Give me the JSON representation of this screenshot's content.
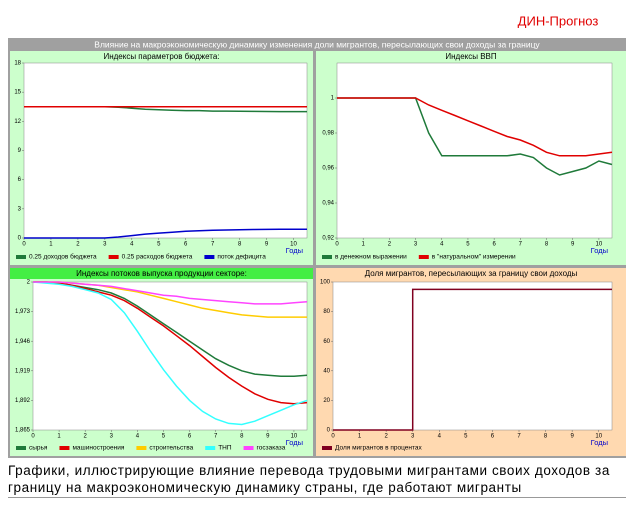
{
  "header": "ДИН-Прогноз",
  "title": "Влияние на макроэкономическую динамику изменения доли мигрантов, пересылающих свои доходы за границу",
  "caption": "Графики, иллюстрирующие влияние перевода трудовыми мигрантами своих доходов за границу на макроэкономическую динамику страны, где работают мигранты",
  "chart_data": [
    {
      "type": "line",
      "title": "Индексы параметров бюджета:",
      "xlabel": "Годы",
      "x": [
        0,
        0.5,
        1,
        1.5,
        2,
        2.5,
        3,
        3.5,
        4,
        4.5,
        5,
        5.5,
        6,
        6.5,
        7,
        7.5,
        8,
        8.5,
        9,
        9.5,
        10,
        10.5
      ],
      "xlim": [
        0,
        10.5
      ],
      "xticks": [
        0,
        1,
        2,
        3,
        4,
        5,
        6,
        7,
        8,
        9,
        10
      ],
      "ylim": [
        0,
        18
      ],
      "yticks": [
        0,
        3,
        6,
        9,
        12,
        15,
        18
      ],
      "grid": false,
      "series": [
        {
          "name": "0.25 доходов бюджета",
          "color": "#1f7a3a",
          "values": [
            13.5,
            13.5,
            13.5,
            13.5,
            13.5,
            13.5,
            13.5,
            13.45,
            13.35,
            13.25,
            13.2,
            13.15,
            13.1,
            13.1,
            13.05,
            13.05,
            13.03,
            13.02,
            13.01,
            13.0,
            13.0,
            13.0
          ]
        },
        {
          "name": "0.25 расходов бюджета",
          "color": "#e00000",
          "values": [
            13.5,
            13.5,
            13.5,
            13.5,
            13.5,
            13.5,
            13.5,
            13.5,
            13.5,
            13.5,
            13.5,
            13.5,
            13.5,
            13.5,
            13.5,
            13.5,
            13.5,
            13.5,
            13.5,
            13.5,
            13.5,
            13.5
          ]
        },
        {
          "name": "поток дефицита",
          "color": "#0000cc",
          "values": [
            0,
            0,
            0,
            0,
            0,
            0,
            0,
            0.1,
            0.25,
            0.4,
            0.5,
            0.6,
            0.7,
            0.75,
            0.8,
            0.82,
            0.85,
            0.87,
            0.88,
            0.89,
            0.9,
            0.9
          ]
        }
      ]
    },
    {
      "type": "line",
      "title": "Индексы ВВП",
      "xlabel": "Годы",
      "x": [
        0,
        0.5,
        1,
        1.5,
        2,
        2.5,
        3,
        3.5,
        4,
        4.5,
        5,
        5.5,
        6,
        6.5,
        7,
        7.5,
        8,
        8.5,
        9,
        9.5,
        10,
        10.5
      ],
      "xlim": [
        0,
        10.5
      ],
      "xticks": [
        0,
        1,
        2,
        3,
        4,
        5,
        6,
        7,
        8,
        9,
        10
      ],
      "ylim": [
        0.92,
        1.02
      ],
      "yticks": [
        {
          "value": 0.92,
          "label": "0,92"
        },
        {
          "value": 0.94,
          "label": "0,94"
        },
        {
          "value": 0.96,
          "label": "0,96"
        },
        {
          "value": 0.98,
          "label": "0,98"
        },
        1
      ],
      "grid": false,
      "series": [
        {
          "name": "в денежном выражении",
          "color": "#1f7a3a",
          "values": [
            1,
            1,
            1,
            1,
            1,
            1,
            1,
            0.98,
            0.967,
            0.967,
            0.967,
            0.967,
            0.967,
            0.967,
            0.968,
            0.966,
            0.96,
            0.956,
            0.958,
            0.96,
            0.964,
            0.962
          ]
        },
        {
          "name": "в \"натуральном\" измерении",
          "color": "#e00000",
          "values": [
            1,
            1,
            1,
            1,
            1,
            1,
            1,
            0.996,
            0.993,
            0.99,
            0.987,
            0.984,
            0.981,
            0.978,
            0.976,
            0.973,
            0.969,
            0.967,
            0.967,
            0.967,
            0.968,
            0.969
          ]
        }
      ]
    },
    {
      "type": "line",
      "title": "Индексы потоков выпуска продукции секторе:",
      "xlabel": "Годы",
      "x": [
        0,
        0.5,
        1,
        1.5,
        2,
        2.5,
        3,
        3.5,
        4,
        4.5,
        5,
        5.5,
        6,
        6.5,
        7,
        7.5,
        8,
        8.5,
        9,
        9.5,
        10,
        10.5
      ],
      "xlim": [
        0,
        10.5
      ],
      "xticks": [
        0,
        1,
        2,
        3,
        4,
        5,
        6,
        7,
        8,
        9,
        10
      ],
      "ylim": [
        1.865,
        2
      ],
      "yticks": [
        {
          "value": 1.865,
          "label": "1,865"
        },
        {
          "value": 1.892,
          "label": "1,892"
        },
        {
          "value": 1.919,
          "label": "1,919"
        },
        {
          "value": 1.946,
          "label": "1,946"
        },
        {
          "value": 1.973,
          "label": "1,973"
        },
        2
      ],
      "grid": false,
      "series": [
        {
          "name": "сырья",
          "color": "#1f7a3a",
          "values": [
            2,
            2,
            1.999,
            1.997,
            1.995,
            1.993,
            1.99,
            1.985,
            1.978,
            1.97,
            1.962,
            1.954,
            1.946,
            1.938,
            1.93,
            1.924,
            1.919,
            1.916,
            1.915,
            1.914,
            1.914,
            1.915
          ]
        },
        {
          "name": "машиностроения",
          "color": "#e00000",
          "values": [
            2,
            2,
            1.999,
            1.997,
            1.994,
            1.991,
            1.988,
            1.983,
            1.976,
            1.968,
            1.96,
            1.951,
            1.942,
            1.932,
            1.922,
            1.913,
            1.905,
            1.898,
            1.893,
            1.89,
            1.889,
            1.89
          ]
        },
        {
          "name": "строительства",
          "color": "#ffcc00",
          "values": [
            2,
            2,
            2,
            1.999,
            1.998,
            1.997,
            1.995,
            1.993,
            1.991,
            1.988,
            1.985,
            1.982,
            1.979,
            1.976,
            1.974,
            1.972,
            1.97,
            1.969,
            1.968,
            1.968,
            1.968,
            1.968
          ]
        },
        {
          "name": "ТНП",
          "color": "#33ffff",
          "values": [
            2,
            1.999,
            1.998,
            1.996,
            1.993,
            1.99,
            1.984,
            1.972,
            1.955,
            1.937,
            1.92,
            1.905,
            1.892,
            1.882,
            1.875,
            1.871,
            1.87,
            1.873,
            1.878,
            1.883,
            1.888,
            1.892
          ]
        },
        {
          "name": "госзаказа",
          "color": "#ff44ff",
          "values": [
            2,
            2,
            2,
            1.999,
            1.998,
            1.997,
            1.996,
            1.994,
            1.992,
            1.99,
            1.988,
            1.987,
            1.985,
            1.984,
            1.983,
            1.982,
            1.981,
            1.98,
            1.98,
            1.98,
            1.981,
            1.982
          ]
        }
      ]
    },
    {
      "type": "line",
      "title": "Доля мигрантов, пересылающих за границу свои доходы",
      "xlabel": "Годы",
      "x": [
        0,
        3,
        3,
        10.5
      ],
      "xlim": [
        0,
        10.5
      ],
      "xticks": [
        0,
        1,
        2,
        3,
        4,
        5,
        6,
        7,
        8,
        9,
        10
      ],
      "ylim": [
        0,
        100
      ],
      "yticks": [
        0,
        20,
        40,
        60,
        80,
        100
      ],
      "grid": false,
      "series": [
        {
          "name": "Доля мигрантов в процентах",
          "color": "#800020",
          "values": [
            0,
            0,
            95,
            95
          ]
        }
      ]
    }
  ]
}
